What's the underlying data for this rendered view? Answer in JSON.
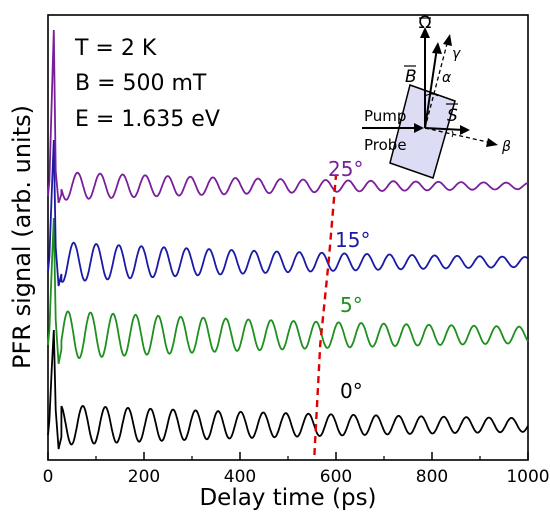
{
  "chart_data": {
    "type": "line",
    "xlabel": "Delay time (ps)",
    "ylabel": "PFR signal (arb. units)",
    "xlim": [
      0,
      1000
    ],
    "xticks": [
      0,
      200,
      400,
      600,
      800,
      1000
    ],
    "y_ticks_labeled": false,
    "grid": false,
    "annotations": [
      "T = 2 K",
      "B = 500 mT",
      "E = 1.635 eV"
    ],
    "series": [
      {
        "name": "0°",
        "color": "#000000",
        "period_ps": 47,
        "phase_ps": 2,
        "amp_start": 1.0,
        "decay_ps": 900,
        "baseline": 0
      },
      {
        "name": "5°",
        "color": "#1f8f1f",
        "period_ps": 47,
        "phase_ps": 18,
        "amp_start": 1.0,
        "decay_ps": 900,
        "baseline": 1
      },
      {
        "name": "15°",
        "color": "#1a1aa6",
        "period_ps": 47,
        "phase_ps": 30,
        "amp_start": 1.0,
        "decay_ps": 700,
        "baseline": 2
      },
      {
        "name": "25°",
        "color": "#7a1f9c",
        "period_ps": 47,
        "phase_ps": 38,
        "amp_start": 1.0,
        "decay_ps": 650,
        "baseline": 3
      }
    ],
    "phase_marker": {
      "color": "#e00000",
      "style": "dashed",
      "points": [
        [
          555,
          0
        ],
        [
          567,
          1
        ],
        [
          585,
          2
        ],
        [
          600,
          3
        ]
      ]
    },
    "inset": {
      "labels": {
        "omega": "Ω",
        "gamma": "γ",
        "b_field": "B",
        "alpha": "α",
        "pump": "Pump",
        "spin": "S",
        "probe": "Probe",
        "beta": "β"
      },
      "sample_color": "#dcdcf5"
    }
  }
}
